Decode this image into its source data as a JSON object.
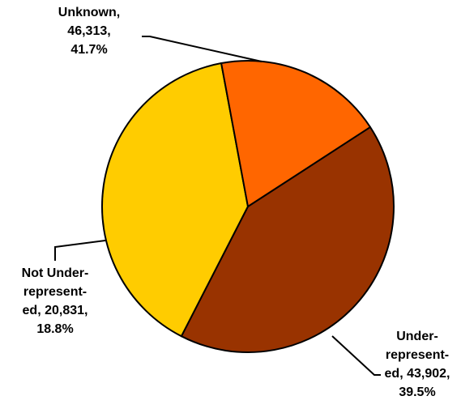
{
  "chart_data": {
    "type": "pie",
    "slices": [
      {
        "label": "Unknown",
        "value": 46313,
        "percent": "41.7%",
        "color": "#993300",
        "label_lines": [
          "Unknown,",
          "46,313,",
          "41.7%"
        ]
      },
      {
        "label": "Under-represent-ed",
        "value": 43902,
        "percent": "39.5%",
        "color": "#FFCC00",
        "label_lines": [
          "Under-",
          "represent-",
          "ed, 43,902,",
          "39.5%"
        ]
      },
      {
        "label": "Not Under-represent-ed",
        "value": 20831,
        "percent": "18.8%",
        "color": "#FF6600",
        "label_lines": [
          "Not Under-",
          "represent-",
          "ed, 20,831,",
          "18.8%"
        ]
      }
    ]
  }
}
